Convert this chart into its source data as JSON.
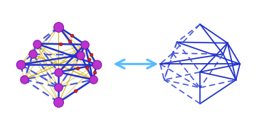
{
  "bg_color": "#ffffff",
  "arrow_color": "#55bbff",
  "poly_solid": "#2233cc",
  "poly_dashed": "#4455dd",
  "atom_color_gd": "#bb33cc",
  "atom_edge": "#7700aa",
  "bond_blue": "#2233cc",
  "bond_blue_dashed": "#4455dd",
  "bond_yellow": "#ccaa00",
  "bond_yellow_dashed": "#ddbb11",
  "atom_small": "#cc2222",
  "figsize": [
    3.78,
    1.82
  ],
  "dpi": 100
}
